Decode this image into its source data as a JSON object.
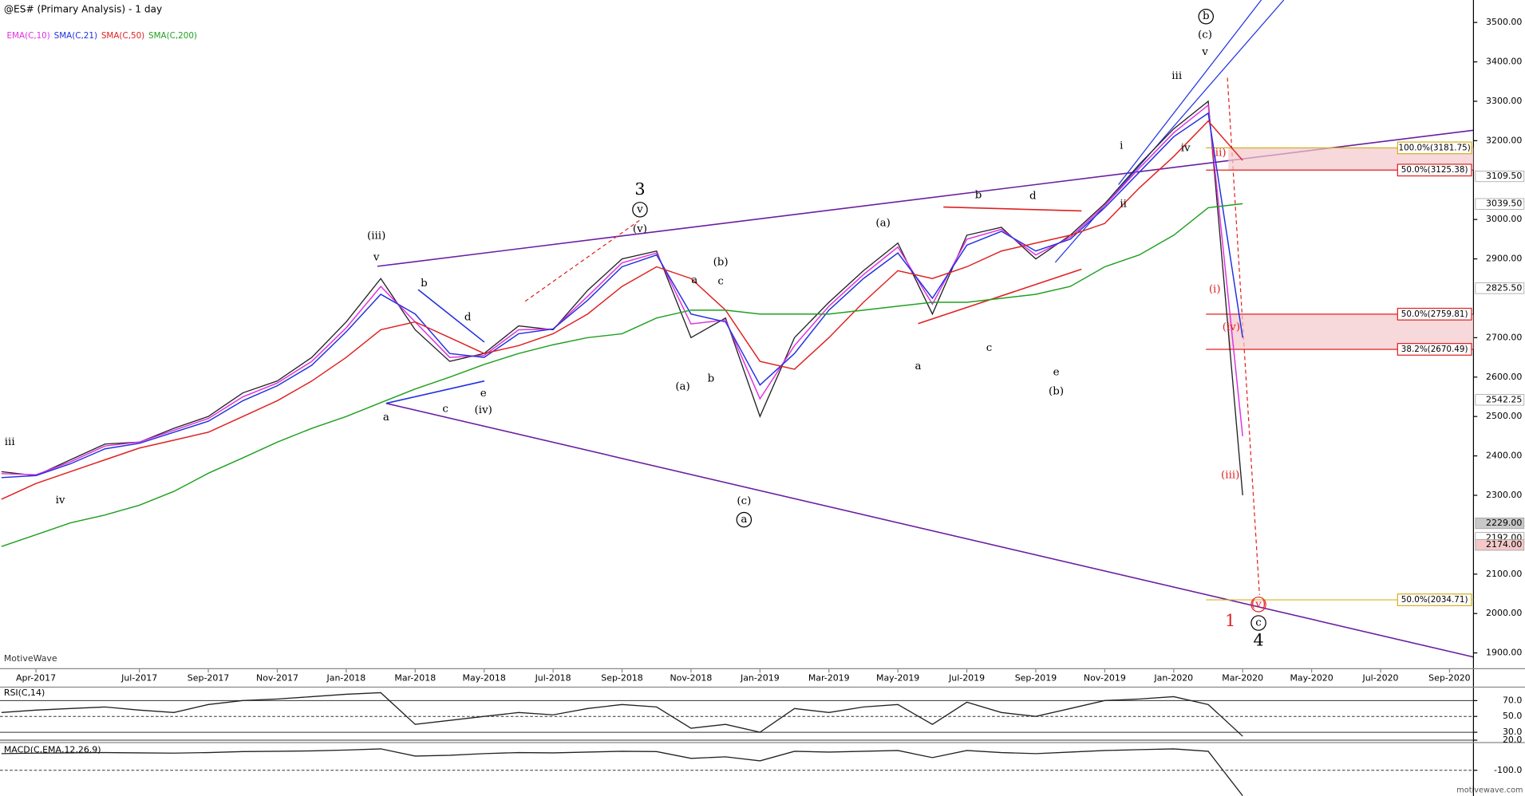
{
  "chart_data": [
    {
      "type": "line",
      "title": "@ES# (Primary Analysis) - 1 day",
      "categories": [
        null,
        "Apr-2017",
        null,
        null,
        "Jul-2017",
        null,
        "Sep-2017",
        null,
        "Nov-2017",
        null,
        "Jan-2018",
        null,
        "Mar-2018",
        null,
        "May-2018",
        null,
        "Jul-2018",
        null,
        "Sep-2018",
        null,
        "Nov-2018",
        null,
        "Jan-2019",
        null,
        "Mar-2019",
        null,
        "May-2019",
        null,
        "Jul-2019",
        null,
        "Sep-2019",
        null,
        "Nov-2019",
        null,
        "Jan-2020",
        null,
        "Mar-2020",
        null,
        "May-2020",
        null,
        "Jul-2020",
        null,
        "Sep-2020"
      ],
      "series": [
        {
          "color": "#222222",
          "values": [
            2360,
            2350,
            2390,
            2430,
            2435,
            2470,
            2500,
            2560,
            2590,
            2650,
            2740,
            2850,
            2720,
            2640,
            2660,
            2730,
            2720,
            2820,
            2900,
            2920,
            2700,
            2750,
            2500,
            2700,
            2790,
            2870,
            2940,
            2760,
            2960,
            2980,
            2900,
            2960,
            3040,
            3140,
            3230,
            3300,
            2300,
            null,
            null,
            null,
            null,
            null,
            null
          ]
        },
        {
          "name": "EMA(C,10)",
          "color": "#e030e0",
          "values": [
            2355,
            2352,
            2385,
            2425,
            2435,
            2465,
            2495,
            2550,
            2585,
            2640,
            2725,
            2830,
            2740,
            2650,
            2655,
            2720,
            2722,
            2805,
            2890,
            2915,
            2735,
            2745,
            2545,
            2680,
            2780,
            2860,
            2930,
            2785,
            2950,
            2975,
            2910,
            2955,
            3035,
            3130,
            3220,
            3290,
            2450,
            null,
            null,
            null,
            null,
            null,
            null
          ]
        },
        {
          "name": "SMA(C,21)",
          "color": "#2030e0",
          "values": [
            2345,
            2350,
            2380,
            2418,
            2432,
            2460,
            2488,
            2540,
            2578,
            2630,
            2715,
            2810,
            2760,
            2660,
            2650,
            2710,
            2722,
            2795,
            2880,
            2910,
            2760,
            2740,
            2580,
            2660,
            2770,
            2850,
            2915,
            2800,
            2935,
            2970,
            2920,
            2950,
            3030,
            3120,
            3210,
            3270,
            2700,
            null,
            null,
            null,
            null,
            null,
            null
          ]
        },
        {
          "name": "SMA(C,50)",
          "color": "#e02020",
          "values": [
            2290,
            2330,
            2360,
            2390,
            2420,
            2440,
            2460,
            2500,
            2540,
            2590,
            2650,
            2720,
            2740,
            2700,
            2660,
            2680,
            2710,
            2760,
            2830,
            2880,
            2850,
            2770,
            2640,
            2620,
            2700,
            2790,
            2870,
            2850,
            2880,
            2920,
            2940,
            2960,
            2990,
            3080,
            3160,
            3250,
            3150,
            null,
            null,
            null,
            null,
            null,
            null
          ]
        },
        {
          "name": "SMA(C,200)",
          "color": "#20a020",
          "values": [
            2170,
            2200,
            2230,
            2250,
            2275,
            2310,
            2356,
            2395,
            2435,
            2470,
            2500,
            2535,
            2570,
            2600,
            2632,
            2660,
            2682,
            2700,
            2710,
            2750,
            2770,
            2770,
            2760,
            2760,
            2760,
            2770,
            2780,
            2790,
            2790,
            2800,
            2810,
            2830,
            2880,
            2910,
            2960,
            3030,
            3040,
            null,
            null,
            null,
            null,
            null,
            null
          ]
        }
      ],
      "ylim": [
        1860,
        3557
      ],
      "yticks": [
        {
          "value": 3500,
          "label": "3500.00"
        },
        {
          "value": 3400,
          "label": "3400.00"
        },
        {
          "value": 3300,
          "label": "3300.00"
        },
        {
          "value": 3200,
          "label": "3200.00"
        },
        {
          "value": 3000,
          "label": "3000.00"
        },
        {
          "value": 2900,
          "label": "2900.00"
        },
        {
          "value": 2700,
          "label": "2700.00"
        },
        {
          "value": 2600,
          "label": "2600.00"
        },
        {
          "value": 2500,
          "label": "2500.00"
        },
        {
          "value": 2400,
          "label": "2400.00"
        },
        {
          "value": 2300,
          "label": "2300.00"
        },
        {
          "value": 2100,
          "label": "2100.00"
        },
        {
          "value": 2000,
          "label": "2000.00"
        },
        {
          "value": 1900,
          "label": "1900.00"
        }
      ],
      "price_tags": [
        {
          "value": 3109.5,
          "label": "3109.50",
          "color": "#ffffff"
        },
        {
          "value": 3039.5,
          "label": "3039.50",
          "color": "#ffffff"
        },
        {
          "value": 2825.5,
          "label": "2825.50",
          "color": "#ffffff"
        },
        {
          "value": 2542.25,
          "label": "2542.25",
          "color": "#ffffff"
        },
        {
          "value": 2229,
          "label": "2229.00",
          "color": "#c8c8c8"
        },
        {
          "value": 2192,
          "label": "2192.00",
          "color": "#ffffff"
        },
        {
          "value": 2174,
          "label": "2174.00",
          "color": "#f4c8c8"
        }
      ],
      "fib_levels": [
        {
          "value": 3181.75,
          "label": "100.0%(3181.75)",
          "color": "#d4b020"
        },
        {
          "value": 3125.38,
          "label": "50.0%(3125.38)",
          "color": "#e02020"
        },
        {
          "value": 2759.81,
          "label": "50.0%(2759.81)",
          "color": "#e02020"
        },
        {
          "value": 2670.49,
          "label": "38.2%(2670.49)",
          "color": "#e02020"
        },
        {
          "value": 2034.71,
          "label": "50.0%(2034.71)",
          "color": "#d4b020"
        }
      ],
      "annotations": [
        {
          "text": "iii",
          "y": 2435
        },
        {
          "text": "iv",
          "y": 2287
        },
        {
          "text": "(iii)",
          "y": 2958
        },
        {
          "text": "v",
          "y": 2903
        },
        {
          "text": "a",
          "y": 2497
        },
        {
          "text": "b",
          "y": 2837
        },
        {
          "text": "c",
          "y": 2519
        },
        {
          "text": "d",
          "y": 2751
        },
        {
          "text": "e",
          "y": 2558
        },
        {
          "text": "(iv)",
          "y": 2516
        },
        {
          "text": "3",
          "y": 3074,
          "large": true
        },
        {
          "text": "v",
          "y": 3025,
          "circled": true
        },
        {
          "text": "(v)",
          "y": 2975
        },
        {
          "text": "(b)",
          "y": 2891
        },
        {
          "text": "a",
          "y": 2845
        },
        {
          "text": "c",
          "y": 2842
        },
        {
          "text": "b",
          "y": 2595
        },
        {
          "text": "(a)",
          "y": 2575
        },
        {
          "text": "(c)",
          "y": 2285
        },
        {
          "text": "a",
          "y": 2238,
          "circled": true
        },
        {
          "text": "(a)",
          "y": 2990
        },
        {
          "text": "b",
          "y": 3061
        },
        {
          "text": "d",
          "y": 3059
        },
        {
          "text": "a",
          "y": 2627
        },
        {
          "text": "c",
          "y": 2673
        },
        {
          "text": "e",
          "y": 2612
        },
        {
          "text": "(b)",
          "y": 2563
        },
        {
          "text": "i",
          "y": 3187
        },
        {
          "text": "ii",
          "y": 3039
        },
        {
          "text": "iii",
          "y": 3364
        },
        {
          "text": "iv",
          "y": 3180
        },
        {
          "text": "v",
          "y": 3424
        },
        {
          "text": "(c)",
          "y": 3468
        },
        {
          "text": "b",
          "y": 3515,
          "circled": true
        },
        {
          "text": "(ii)",
          "y": 3168,
          "color": "#e02020"
        },
        {
          "text": "(i)",
          "y": 2822,
          "color": "#e02020"
        },
        {
          "text": "(iv)",
          "y": 2726,
          "color": "#e02020"
        },
        {
          "text": "(iii)",
          "y": 2351,
          "color": "#e02020"
        },
        {
          "text": "(v)",
          "y": 2023,
          "color": "#e02020",
          "circled": true
        },
        {
          "text": "1",
          "y": 1979,
          "color": "#e02020",
          "large": true
        },
        {
          "text": "c",
          "y": 1976,
          "circled": true
        },
        {
          "text": "4",
          "y": 1930,
          "large": true
        }
      ]
    },
    {
      "type": "line",
      "title": "RSI(C,14)",
      "series": [
        {
          "color": "#222222",
          "values": [
            55,
            58,
            60,
            62,
            58,
            55,
            65,
            70,
            72,
            75,
            78,
            80,
            40,
            45,
            50,
            55,
            52,
            60,
            65,
            62,
            35,
            40,
            30,
            60,
            55,
            62,
            65,
            40,
            68,
            55,
            50,
            60,
            70,
            72,
            75,
            65,
            25,
            null,
            null,
            null,
            null,
            null,
            null
          ]
        }
      ],
      "ylim": [
        17,
        87
      ],
      "yticks": [
        {
          "value": 70,
          "label": "70.0"
        },
        {
          "value": 50,
          "label": "50.0"
        },
        {
          "value": 30,
          "label": "30.0"
        },
        {
          "value": 20,
          "label": "20.0"
        }
      ]
    },
    {
      "type": "line",
      "title": "MACD(C,EMA,12,26,9)",
      "series": [
        {
          "color": "#222222",
          "values": [
            5,
            8,
            10,
            12,
            10,
            8,
            12,
            18,
            20,
            22,
            28,
            35,
            -10,
            -5,
            5,
            12,
            10,
            15,
            20,
            18,
            -25,
            -15,
            -40,
            20,
            15,
            20,
            25,
            -20,
            25,
            12,
            5,
            15,
            25,
            30,
            35,
            20,
            -260,
            null,
            null,
            null,
            null,
            null,
            null
          ]
        }
      ],
      "ylim": [
        -262,
        75
      ],
      "yticks": [
        {
          "value": -100,
          "label": "-100.0"
        }
      ]
    }
  ],
  "branding": {
    "left": "MotiveWave",
    "right": "motivewave.com"
  }
}
